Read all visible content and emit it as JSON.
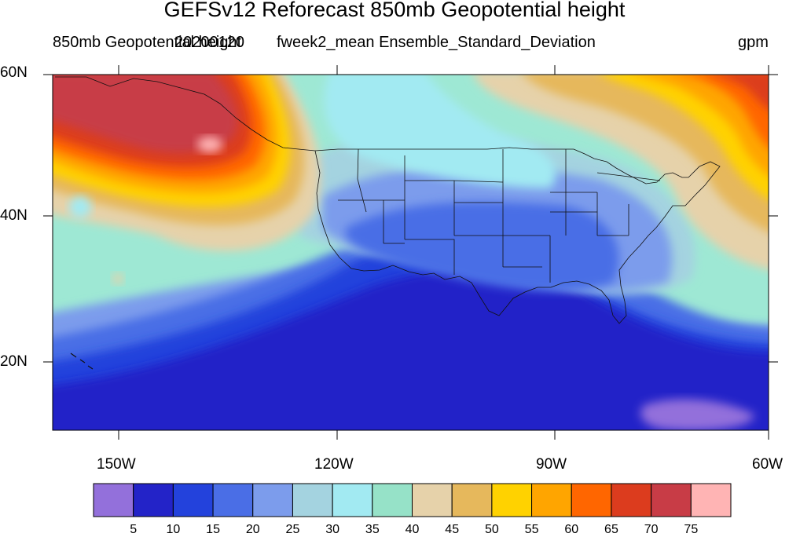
{
  "title": "GEFSv12 Reforecast 850mb Geopotential height",
  "subtitle_left": "850mb Geopotential height",
  "subtitle_date": "20200120",
  "subtitle_center": "fweek2_mean Ensemble_Standard_Deviation",
  "subtitle_right": "gpm",
  "lat_labels": [
    "60N",
    "40N",
    "20N"
  ],
  "lon_labels": [
    "150W",
    "120W",
    "90W",
    "60W"
  ],
  "colorbar": {
    "colors": [
      "#9370db",
      "#2323c8",
      "#2342dc",
      "#4a6ee6",
      "#7c9cec",
      "#a4d3e0",
      "#a2eaf2",
      "#96e2c8",
      "#e6d2aa",
      "#e6b85c",
      "#ffd200",
      "#ffa500",
      "#ff6600",
      "#dc3c1e",
      "#c83c46",
      "#ffb4b4"
    ],
    "labels": [
      "5",
      "10",
      "15",
      "20",
      "25",
      "30",
      "35",
      "40",
      "45",
      "50",
      "55",
      "60",
      "65",
      "70",
      "75"
    ]
  }
}
